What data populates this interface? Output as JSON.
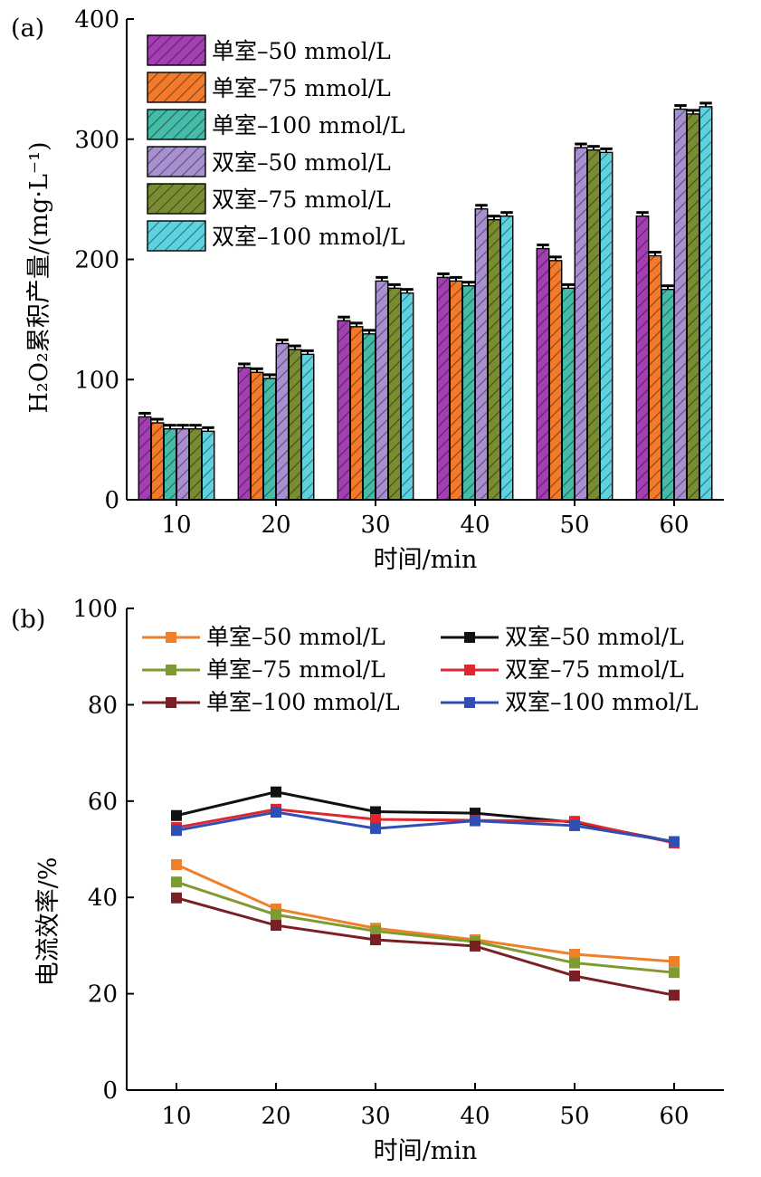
{
  "chart_data": [
    {
      "type": "bar",
      "panel_label": "(a)",
      "categories": [
        "10",
        "20",
        "30",
        "40",
        "50",
        "60"
      ],
      "xlabel": "时间/min",
      "ylabel": "H₂O₂累积产量/(mg·L⁻¹)",
      "ylim": [
        0,
        400
      ],
      "yticks": [
        "0",
        "100",
        "200",
        "300",
        "400"
      ],
      "legend_position": "top-left",
      "grid": false,
      "series": [
        {
          "name": "单室–50 mmol/L",
          "color": "#a33fb3",
          "values": [
            69,
            110,
            149,
            185,
            209,
            236
          ]
        },
        {
          "name": "单室–75 mmol/L",
          "color": "#f47a2b",
          "values": [
            64,
            106,
            144,
            182,
            199,
            203
          ]
        },
        {
          "name": "单室–100 mmol/L",
          "color": "#45bca8",
          "values": [
            59,
            101,
            138,
            178,
            176,
            175
          ]
        },
        {
          "name": "双室–50 mmol/L",
          "color": "#a88fd0",
          "values": [
            59,
            130,
            182,
            242,
            293,
            325
          ]
        },
        {
          "name": "双室–75 mmol/L",
          "color": "#7a8c32",
          "values": [
            59,
            125,
            176,
            233,
            291,
            321
          ]
        },
        {
          "name": "双室–100 mmol/L",
          "color": "#5dd3df",
          "values": [
            57,
            121,
            172,
            236,
            289,
            327
          ]
        }
      ]
    },
    {
      "type": "line",
      "panel_label": "(b)",
      "x": [
        10,
        20,
        30,
        40,
        50,
        60
      ],
      "xticks": [
        "10",
        "20",
        "30",
        "40",
        "50",
        "60"
      ],
      "xlabel": "时间/min",
      "ylabel": "电流效率/%",
      "ylim": [
        0,
        100
      ],
      "yticks": [
        "0",
        "20",
        "40",
        "60",
        "80",
        "100"
      ],
      "legend_position": "top",
      "grid": false,
      "series": [
        {
          "name": "单室–50 mmol/L",
          "color": "#f07f2a",
          "values": [
            46.8,
            37.6,
            33.6,
            31.2,
            28.2,
            26.7
          ]
        },
        {
          "name": "单室–75 mmol/L",
          "color": "#7e9a30",
          "values": [
            43.2,
            36.4,
            33.0,
            30.8,
            26.4,
            24.4
          ]
        },
        {
          "name": "单室–100 mmol/L",
          "color": "#7a1f24",
          "values": [
            39.9,
            34.2,
            31.2,
            29.9,
            23.7,
            19.7
          ]
        },
        {
          "name": "双室–50 mmol/L",
          "color": "#111111",
          "values": [
            57.0,
            61.9,
            57.8,
            57.5,
            55.6,
            51.5
          ]
        },
        {
          "name": "双室–75 mmol/L",
          "color": "#e0262e",
          "values": [
            54.5,
            58.3,
            56.2,
            56.0,
            55.8,
            51.3
          ]
        },
        {
          "name": "双室–100 mmol/L",
          "color": "#2f4fb5",
          "values": [
            53.9,
            57.7,
            54.3,
            55.9,
            54.9,
            51.6
          ]
        }
      ]
    }
  ]
}
